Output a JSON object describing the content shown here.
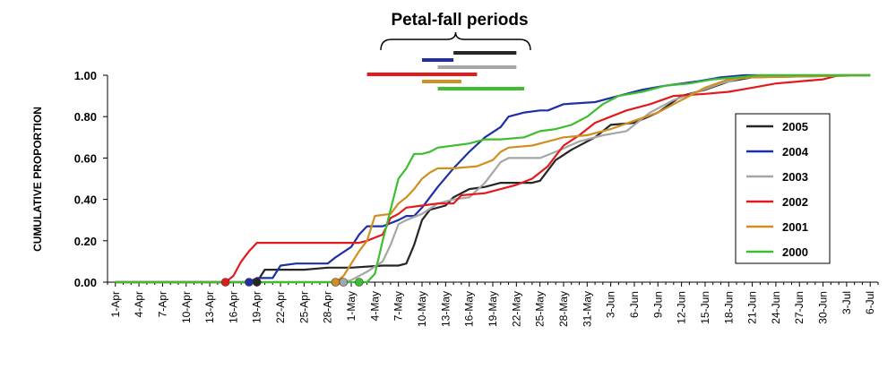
{
  "chart_data": {
    "type": "line",
    "title": "Petal-fall periods",
    "xlabel": "",
    "ylabel": "CUMULATIVE PROPORTION",
    "ylim": [
      0,
      1
    ],
    "y_ticks": [
      "0.00",
      "0.20",
      "0.40",
      "0.60",
      "0.80",
      "1.00"
    ],
    "y_tick_values": [
      0,
      0.2,
      0.4,
      0.6,
      0.8,
      1.0
    ],
    "x_ticks": [
      "1-Apr",
      "4-Apr",
      "7-Apr",
      "10-Apr",
      "13-Apr",
      "16-Apr",
      "19-Apr",
      "22-Apr",
      "25-Apr",
      "28-Apr",
      "1-May",
      "4-May",
      "7-May",
      "10-May",
      "13-May",
      "16-May",
      "19-May",
      "22-May",
      "25-May",
      "28-May",
      "31-May",
      "3-Jun",
      "6-Jun",
      "9-Jun",
      "12-Jun",
      "15-Jun",
      "18-Jun",
      "21-Jun",
      "24-Jun",
      "27-Jun",
      "30-Jun",
      "3-Jul",
      "6-Jul"
    ],
    "x_tick_days": [
      1,
      4,
      7,
      10,
      13,
      16,
      19,
      22,
      25,
      28,
      31,
      34,
      37,
      40,
      43,
      46,
      49,
      52,
      55,
      58,
      61,
      64,
      67,
      70,
      73,
      76,
      79,
      82,
      85,
      88,
      91,
      94,
      97
    ],
    "xlim_days": [
      0,
      98
    ],
    "grid": false,
    "legend_position": "right",
    "series": [
      {
        "name": "2005",
        "color": "#262626",
        "start_marker": [
          "19-Apr",
          0.0
        ],
        "points": [
          [
            "1-Apr",
            0
          ],
          [
            "18-Apr",
            0
          ],
          [
            "19-Apr",
            0.0
          ],
          [
            "20-Apr",
            0.06
          ],
          [
            "25-Apr",
            0.06
          ],
          [
            "28-Apr",
            0.07
          ],
          [
            "1-May",
            0.07
          ],
          [
            "5-May",
            0.08
          ],
          [
            "7-May",
            0.08
          ],
          [
            "8-May",
            0.09
          ],
          [
            "9-May",
            0.18
          ],
          [
            "10-May",
            0.3
          ],
          [
            "11-May",
            0.35
          ],
          [
            "13-May",
            0.37
          ],
          [
            "14-May",
            0.41
          ],
          [
            "16-May",
            0.45
          ],
          [
            "18-May",
            0.46
          ],
          [
            "20-May",
            0.48
          ],
          [
            "24-May",
            0.48
          ],
          [
            "25-May",
            0.49
          ],
          [
            "27-May",
            0.59
          ],
          [
            "29-May",
            0.64
          ],
          [
            "1-Jun",
            0.7
          ],
          [
            "3-Jun",
            0.76
          ],
          [
            "6-Jun",
            0.77
          ],
          [
            "9-Jun",
            0.82
          ],
          [
            "12-Jun",
            0.9
          ],
          [
            "15-Jun",
            0.93
          ],
          [
            "18-Jun",
            0.97
          ],
          [
            "21-Jun",
            0.99
          ],
          [
            "6-Jul",
            1.0
          ]
        ]
      },
      {
        "name": "2004",
        "color": "#1f2fa8",
        "start_marker": [
          "18-Apr",
          0.0
        ],
        "points": [
          [
            "1-Apr",
            0
          ],
          [
            "18-Apr",
            0
          ],
          [
            "19-Apr",
            0.02
          ],
          [
            "21-Apr",
            0.02
          ],
          [
            "22-Apr",
            0.08
          ],
          [
            "24-Apr",
            0.09
          ],
          [
            "28-Apr",
            0.09
          ],
          [
            "29-Apr",
            0.12
          ],
          [
            "1-May",
            0.17
          ],
          [
            "2-May",
            0.23
          ],
          [
            "3-May",
            0.27
          ],
          [
            "5-May",
            0.27
          ],
          [
            "7-May",
            0.3
          ],
          [
            "8-May",
            0.32
          ],
          [
            "9-May",
            0.32
          ],
          [
            "10-May",
            0.36
          ],
          [
            "12-May",
            0.46
          ],
          [
            "14-May",
            0.55
          ],
          [
            "16-May",
            0.63
          ],
          [
            "18-May",
            0.7
          ],
          [
            "20-May",
            0.75
          ],
          [
            "21-May",
            0.8
          ],
          [
            "23-May",
            0.82
          ],
          [
            "25-May",
            0.83
          ],
          [
            "26-May",
            0.83
          ],
          [
            "28-May",
            0.86
          ],
          [
            "1-Jun",
            0.87
          ],
          [
            "4-Jun",
            0.9
          ],
          [
            "7-Jun",
            0.93
          ],
          [
            "10-Jun",
            0.95
          ],
          [
            "14-Jun",
            0.97
          ],
          [
            "17-Jun",
            0.99
          ],
          [
            "20-Jun",
            1.0
          ],
          [
            "6-Jul",
            1.0
          ]
        ]
      },
      {
        "name": "2003",
        "color": "#a6a6a6",
        "start_marker": [
          "30-Apr",
          0.0
        ],
        "points": [
          [
            "1-Apr",
            0
          ],
          [
            "30-Apr",
            0
          ],
          [
            "1-May",
            0.01
          ],
          [
            "3-May",
            0.05
          ],
          [
            "5-May",
            0.1
          ],
          [
            "6-May",
            0.18
          ],
          [
            "7-May",
            0.28
          ],
          [
            "8-May",
            0.3
          ],
          [
            "10-May",
            0.33
          ],
          [
            "12-May",
            0.38
          ],
          [
            "14-May",
            0.4
          ],
          [
            "16-May",
            0.41
          ],
          [
            "18-May",
            0.48
          ],
          [
            "20-May",
            0.58
          ],
          [
            "21-May",
            0.6
          ],
          [
            "25-May",
            0.6
          ],
          [
            "27-May",
            0.63
          ],
          [
            "30-May",
            0.68
          ],
          [
            "2-Jun",
            0.71
          ],
          [
            "5-Jun",
            0.73
          ],
          [
            "8-Jun",
            0.82
          ],
          [
            "11-Jun",
            0.88
          ],
          [
            "14-Jun",
            0.92
          ],
          [
            "17-Jun",
            0.96
          ],
          [
            "20-Jun",
            0.99
          ],
          [
            "6-Jul",
            1.0
          ]
        ]
      },
      {
        "name": "2002",
        "color": "#e31a1c",
        "start_marker": [
          "15-Apr",
          0.0
        ],
        "points": [
          [
            "1-Apr",
            0
          ],
          [
            "15-Apr",
            0
          ],
          [
            "16-Apr",
            0.03
          ],
          [
            "17-Apr",
            0.1
          ],
          [
            "18-Apr",
            0.15
          ],
          [
            "19-Apr",
            0.19
          ],
          [
            "2-May",
            0.19
          ],
          [
            "3-May",
            0.2
          ],
          [
            "5-May",
            0.23
          ],
          [
            "6-May",
            0.31
          ],
          [
            "7-May",
            0.33
          ],
          [
            "8-May",
            0.36
          ],
          [
            "10-May",
            0.37
          ],
          [
            "12-May",
            0.38
          ],
          [
            "14-May",
            0.38
          ],
          [
            "15-May",
            0.42
          ],
          [
            "18-May",
            0.43
          ],
          [
            "20-May",
            0.45
          ],
          [
            "22-May",
            0.47
          ],
          [
            "24-May",
            0.5
          ],
          [
            "26-May",
            0.56
          ],
          [
            "28-May",
            0.66
          ],
          [
            "30-May",
            0.71
          ],
          [
            "1-Jun",
            0.77
          ],
          [
            "3-Jun",
            0.8
          ],
          [
            "5-Jun",
            0.83
          ],
          [
            "8-Jun",
            0.86
          ],
          [
            "11-Jun",
            0.9
          ],
          [
            "15-Jun",
            0.91
          ],
          [
            "18-Jun",
            0.92
          ],
          [
            "21-Jun",
            0.94
          ],
          [
            "24-Jun",
            0.96
          ],
          [
            "27-Jun",
            0.97
          ],
          [
            "30-Jun",
            0.98
          ],
          [
            "2-Jul",
            1.0
          ],
          [
            "6-Jul",
            1.0
          ]
        ]
      },
      {
        "name": "2001",
        "color": "#d18f1f",
        "start_marker": [
          "29-Apr",
          0.0
        ],
        "points": [
          [
            "1-Apr",
            0
          ],
          [
            "29-Apr",
            0
          ],
          [
            "30-Apr",
            0.03
          ],
          [
            "2-May",
            0.15
          ],
          [
            "3-May",
            0.2
          ],
          [
            "4-May",
            0.32
          ],
          [
            "6-May",
            0.33
          ],
          [
            "7-May",
            0.38
          ],
          [
            "8-May",
            0.41
          ],
          [
            "9-May",
            0.45
          ],
          [
            "10-May",
            0.5
          ],
          [
            "11-May",
            0.53
          ],
          [
            "12-May",
            0.55
          ],
          [
            "14-May",
            0.55
          ],
          [
            "17-May",
            0.56
          ],
          [
            "19-May",
            0.59
          ],
          [
            "20-May",
            0.63
          ],
          [
            "21-May",
            0.65
          ],
          [
            "24-May",
            0.66
          ],
          [
            "26-May",
            0.68
          ],
          [
            "28-May",
            0.7
          ],
          [
            "31-May",
            0.71
          ],
          [
            "3-Jun",
            0.74
          ],
          [
            "6-Jun",
            0.78
          ],
          [
            "9-Jun",
            0.82
          ],
          [
            "12-Jun",
            0.88
          ],
          [
            "15-Jun",
            0.94
          ],
          [
            "18-Jun",
            0.98
          ],
          [
            "21-Jun",
            0.99
          ],
          [
            "6-Jul",
            1.0
          ]
        ]
      },
      {
        "name": "2000",
        "color": "#3dbe2f",
        "start_marker": [
          "2-May",
          0.0
        ],
        "points": [
          [
            "1-Apr",
            0
          ],
          [
            "3-May",
            0
          ],
          [
            "4-May",
            0.04
          ],
          [
            "5-May",
            0.2
          ],
          [
            "6-May",
            0.35
          ],
          [
            "7-May",
            0.5
          ],
          [
            "8-May",
            0.55
          ],
          [
            "9-May",
            0.62
          ],
          [
            "10-May",
            0.62
          ],
          [
            "11-May",
            0.63
          ],
          [
            "12-May",
            0.65
          ],
          [
            "14-May",
            0.66
          ],
          [
            "16-May",
            0.67
          ],
          [
            "18-May",
            0.69
          ],
          [
            "20-May",
            0.69
          ],
          [
            "23-May",
            0.7
          ],
          [
            "25-May",
            0.73
          ],
          [
            "27-May",
            0.74
          ],
          [
            "29-May",
            0.76
          ],
          [
            "31-May",
            0.8
          ],
          [
            "2-Jun",
            0.86
          ],
          [
            "4-Jun",
            0.9
          ],
          [
            "7-Jun",
            0.92
          ],
          [
            "10-Jun",
            0.95
          ],
          [
            "13-Jun",
            0.96
          ],
          [
            "16-Jun",
            0.98
          ],
          [
            "19-Jun",
            0.99
          ],
          [
            "22-Jun",
            1.0
          ],
          [
            "6-Jul",
            1.0
          ]
        ]
      }
    ],
    "petal_fall_periods": [
      {
        "series": "2005",
        "start": "14-May",
        "end": "22-May"
      },
      {
        "series": "2004",
        "start": "10-May",
        "end": "14-May"
      },
      {
        "series": "2003",
        "start": "12-May",
        "end": "22-May"
      },
      {
        "series": "2002",
        "start": "3-May",
        "end": "17-May"
      },
      {
        "series": "2001",
        "start": "10-May",
        "end": "15-May"
      },
      {
        "series": "2000",
        "start": "12-May",
        "end": "23-May"
      }
    ]
  }
}
